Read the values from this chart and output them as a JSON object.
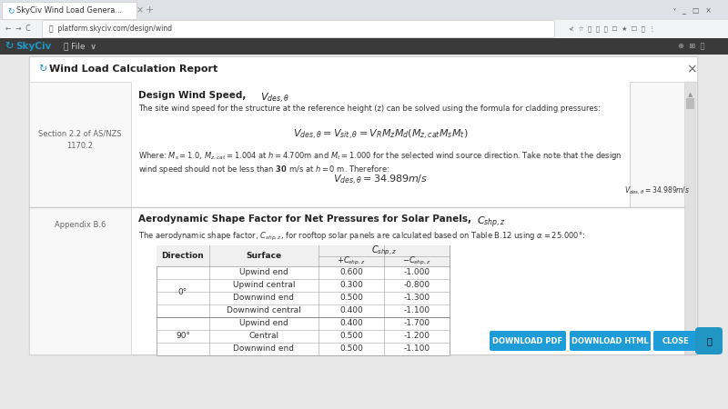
{
  "browser_tab": "SkyCiv Wind Load Genera...",
  "url": "platform.skyciv.com/design/wind",
  "modal_title": "Wind Load Calculation Report",
  "section1_ref": "Section 2.2 of AS/NZS\n1170.2",
  "section1_heading_text": "Design Wind Speed, ",
  "section1_heading_math": "$V_{des,\\theta}$",
  "section1_desc": "The site wind speed for the structure at the reference height (z) can be solved using the formula for cladding pressures:",
  "formula1": "$V_{des,\\theta} = V_{sit,\\theta} = V_R M_z M_d (M_{z,cat} M_s M_t)$",
  "where_line1": "Where: $M_s = 1.0$, $M_{z,cat} = 1.004$ at $h = 4.700$m and $M_t = 1.000$ for the selected wind source direction. Take note that the design",
  "where_line2": "wind speed should not be less than $\\mathbf{30}$ m/s at $h = 0$ m. Therefore:",
  "formula2": "$V_{des,\\theta} = 34.989m/s$",
  "right_formula": "$V_{des,\\theta} = 34.989m/s$",
  "section2_ref": "Appendix B.6",
  "section2_heading_text": "Aerodynamic Shape Factor for Net Pressures for Solar Panels, ",
  "section2_heading_math": "$C_{shp,z}$",
  "section2_desc_pre": "The aerodynamic shape factor, ",
  "section2_desc_math": "$C_{shp,z}$",
  "section2_desc_post": ", for rooftop solar panels are calculated based on Table B.12 using $\\alpha = 25.000°$:",
  "table_data": [
    [
      "0°",
      "Upwind end",
      "0.600",
      "-1.000"
    ],
    [
      "0°",
      "Upwind central",
      "0.300",
      "-0.800"
    ],
    [
      "0°",
      "Downwind end",
      "0.500",
      "-1.300"
    ],
    [
      "0°",
      "Downwind central",
      "0.400",
      "-1.100"
    ],
    [
      "90°",
      "Upwind end",
      "0.400",
      "-1.700"
    ],
    [
      "90°",
      "Central",
      "0.500",
      "-1.200"
    ],
    [
      "90°",
      "Downwind end",
      "0.500",
      "-1.100"
    ]
  ],
  "btn_pdf": "DOWNLOAD PDF",
  "btn_html": "DOWNLOAD HTML",
  "btn_close": "CLOSE",
  "bg_page": "#e8e8e8",
  "bg_tab_bar": "#dee1e6",
  "bg_addr_bar": "#f1f3f4",
  "bg_app_header": "#3a3a3a",
  "skyciv_blue": "#2196c4",
  "modal_bg": "#ffffff",
  "panel_left_bg": "#f8f8f8",
  "panel_right_bg": "#f8f8f8",
  "divider": "#cccccc",
  "border_modal": "#cccccc",
  "table_border": "#aaaaaa",
  "table_hdr_bg": "#f0f0f0",
  "btn_blue": "#1e9cd7",
  "ref_color": "#666666",
  "text_dark": "#222222",
  "text_body": "#333333",
  "scrollbar_bg": "#e0e0e0",
  "scrollbar_thumb": "#bbbbbb"
}
